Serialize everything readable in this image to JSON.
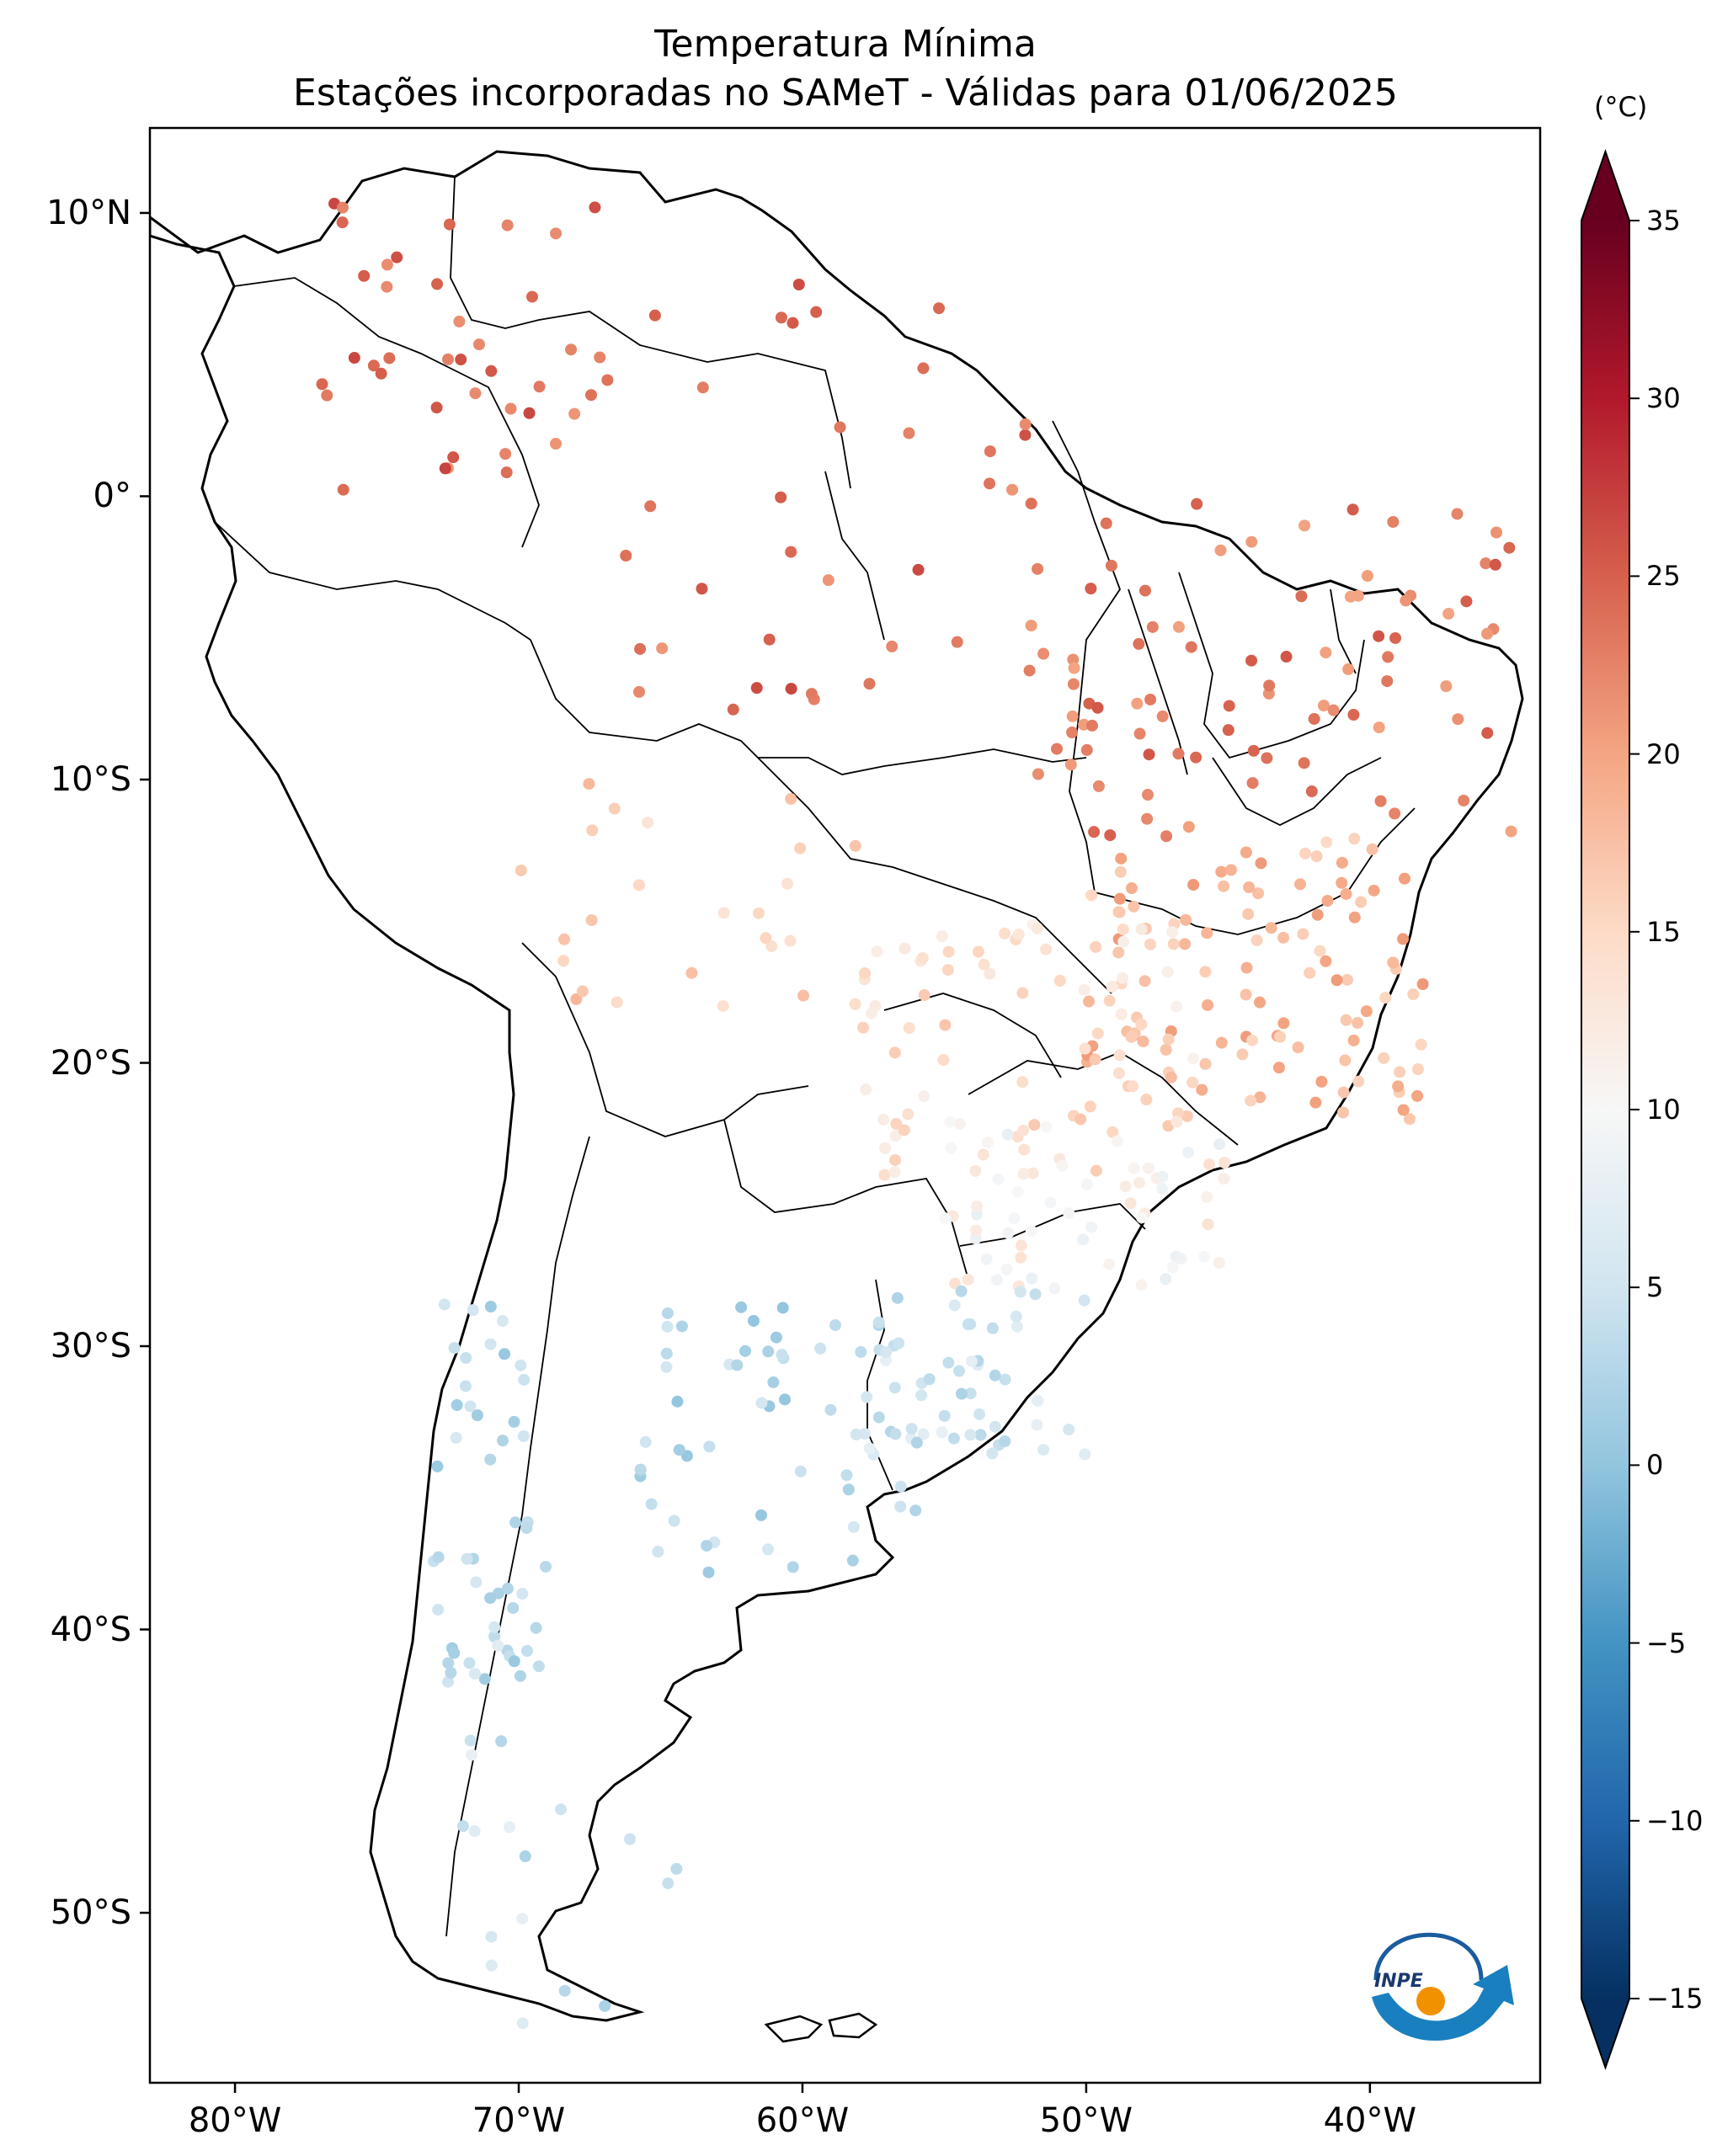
{
  "title": {
    "line1": "Temperatura Mínima",
    "line2": "Estações incorporadas no SAMeT - Válidas para 01/06/2025"
  },
  "map": {
    "lon_range": [
      -83,
      -34
    ],
    "lat_range": [
      -56,
      13
    ],
    "lon_ticks": [
      {
        "value": -80,
        "label": "80°W"
      },
      {
        "value": -70,
        "label": "70°W"
      },
      {
        "value": -60,
        "label": "60°W"
      },
      {
        "value": -50,
        "label": "50°W"
      },
      {
        "value": -40,
        "label": "40°W"
      }
    ],
    "lat_ticks": [
      {
        "value": 10,
        "label": "10°N"
      },
      {
        "value": 0,
        "label": "0°"
      },
      {
        "value": -10,
        "label": "10°S"
      },
      {
        "value": -20,
        "label": "20°S"
      },
      {
        "value": -30,
        "label": "30°S"
      },
      {
        "value": -40,
        "label": "40°S"
      },
      {
        "value": -50,
        "label": "50°S"
      }
    ]
  },
  "colorbar": {
    "unit": "(°C)",
    "min": -15,
    "max": 35,
    "ticks": [
      35,
      30,
      25,
      20,
      15,
      10,
      5,
      0,
      -5,
      -10,
      -15
    ],
    "tick_labels": [
      "35",
      "30",
      "25",
      "20",
      "15",
      "10",
      "5",
      "0",
      "−5",
      "−10",
      "−15"
    ],
    "colormap": "RdBu_r",
    "extend": "both"
  },
  "logo": {
    "text": "INPE"
  },
  "colors": {
    "cold": "#053061",
    "neutral": "#f7f7f7",
    "warm": "#67001f"
  }
}
